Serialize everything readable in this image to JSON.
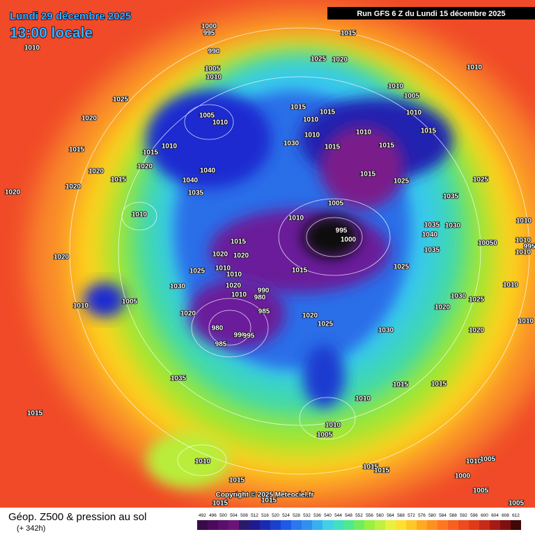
{
  "header": {
    "date": "Lundi 29 décembre 2025",
    "time": "13:00 locale",
    "run": "Run GFS 6 Z du Lundi 15 décembre 2025"
  },
  "footer": {
    "title": "Géop. Z500 & pression au sol",
    "lead": "(+ 342h)",
    "copyright": "Copyright © 2025 Meteociel.fr"
  },
  "legend": {
    "labels": [
      "492",
      "496",
      "500",
      "504",
      "508",
      "512",
      "516",
      "520",
      "524",
      "528",
      "532",
      "536",
      "540",
      "544",
      "548",
      "552",
      "556",
      "560",
      "564",
      "568",
      "572",
      "576",
      "580",
      "584",
      "588",
      "592",
      "596",
      "600",
      "604",
      "608",
      "612"
    ]
  },
  "isobar_labels": [
    "1000",
    "995",
    "990",
    "1005",
    "1010",
    "1010",
    "1015",
    "1025",
    "1020",
    "1010",
    "1025",
    "1020",
    "1005",
    "1010",
    "1010",
    "1005",
    "1015",
    "1015",
    "1010",
    "1010",
    "1015",
    "1010",
    "1010",
    "1030",
    "1015",
    "1015",
    "1015",
    "1015",
    "1010",
    "1020",
    "1040",
    "1020",
    "1015",
    "1040",
    "1015",
    "1025",
    "1025",
    "1020",
    "1020",
    "1035",
    "1035",
    "1005",
    "1010",
    "1010",
    "1035",
    "1030",
    "995",
    "1000",
    "1040",
    "1010",
    "1015",
    "10050",
    "995",
    "1010",
    "1020",
    "1020",
    "1035",
    "1010",
    "1020",
    "1025",
    "1010",
    "1010",
    "1015",
    "1025",
    "1030",
    "1010",
    "1020",
    "990",
    "1010",
    "980",
    "1030",
    "1025",
    "1005",
    "1010",
    "1020",
    "985",
    "1020",
    "1020",
    "1010",
    "1025",
    "980",
    "1030",
    "1020",
    "990",
    "995",
    "985",
    "1035",
    "1015",
    "1015",
    "1010",
    "1015",
    "1010",
    "1005",
    "1010",
    "1010",
    "1005",
    "1015",
    "1015",
    "1000",
    "1005",
    "1015",
    "1015",
    "1015",
    "1005"
  ]
}
